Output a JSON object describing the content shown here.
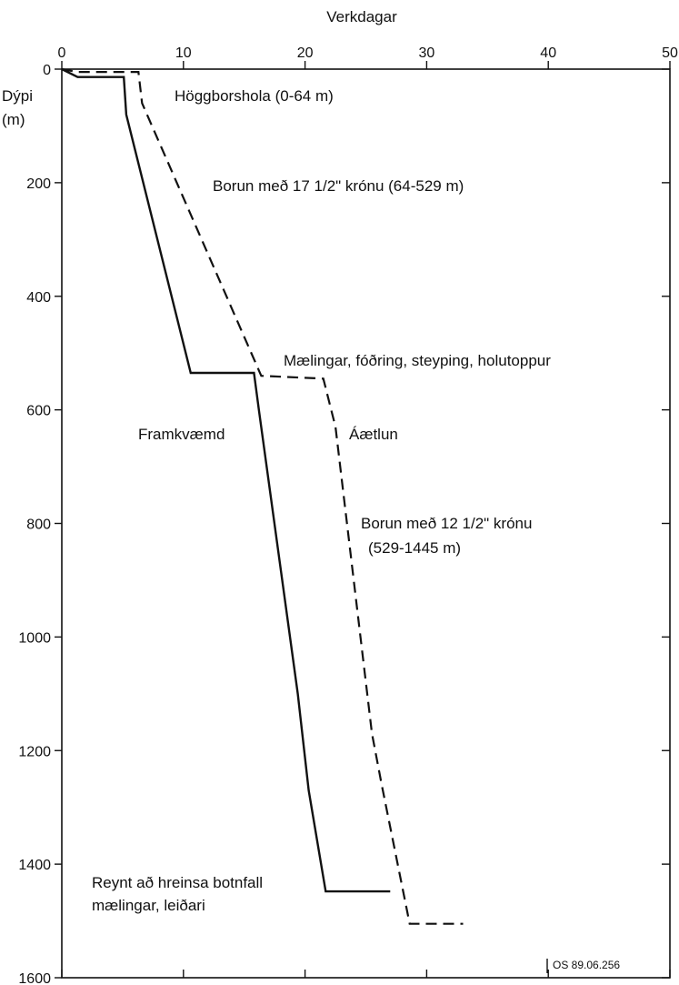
{
  "chart_data": {
    "type": "line",
    "xlabel": "Verkdagar",
    "ylabel_line1": "Dýpi",
    "ylabel_line2": "(m)",
    "xlim": [
      0,
      50
    ],
    "ylim": [
      0,
      1600
    ],
    "y_inverted": true,
    "x_ticks": [
      0,
      10,
      20,
      30,
      40,
      50
    ],
    "y_ticks": [
      0,
      200,
      400,
      600,
      800,
      1000,
      1200,
      1400,
      1600
    ],
    "grid": false,
    "series": [
      {
        "name": "Framkvæmd",
        "style": "solid",
        "points": [
          [
            0,
            0
          ],
          [
            1.3,
            14
          ],
          [
            5.1,
            14
          ],
          [
            5.3,
            80
          ],
          [
            10.6,
            535
          ],
          [
            15.8,
            535
          ],
          [
            16.2,
            600
          ],
          [
            19.4,
            1100
          ],
          [
            20.3,
            1270
          ],
          [
            21.7,
            1448
          ],
          [
            27,
            1448
          ]
        ]
      },
      {
        "name": "Áætlun",
        "style": "dashed",
        "points": [
          [
            0,
            0
          ],
          [
            1.3,
            5
          ],
          [
            6.3,
            5
          ],
          [
            6.6,
            60
          ],
          [
            16.4,
            540
          ],
          [
            21.5,
            545
          ],
          [
            22.5,
            630
          ],
          [
            25.5,
            1170
          ],
          [
            26.3,
            1260
          ],
          [
            28.6,
            1505
          ],
          [
            33,
            1505
          ]
        ]
      }
    ],
    "annotations": [
      {
        "text": "Höggborshola (0-64 m)"
      },
      {
        "text": "Borun með 17 1/2\" krónu (64-529 m)"
      },
      {
        "text": "Mælingar, fóðring, steyping, holutoppur"
      },
      {
        "text": "Framkvæmd"
      },
      {
        "text": "Áætlun"
      },
      {
        "text": "Borun með 12 1/2\" krónu"
      },
      {
        "text": "(529-1445 m)"
      },
      {
        "text": "Reynt að hreinsa botnfall"
      },
      {
        "text": "mælingar, leiðari"
      }
    ],
    "footnote": "OS 89.06.256"
  }
}
